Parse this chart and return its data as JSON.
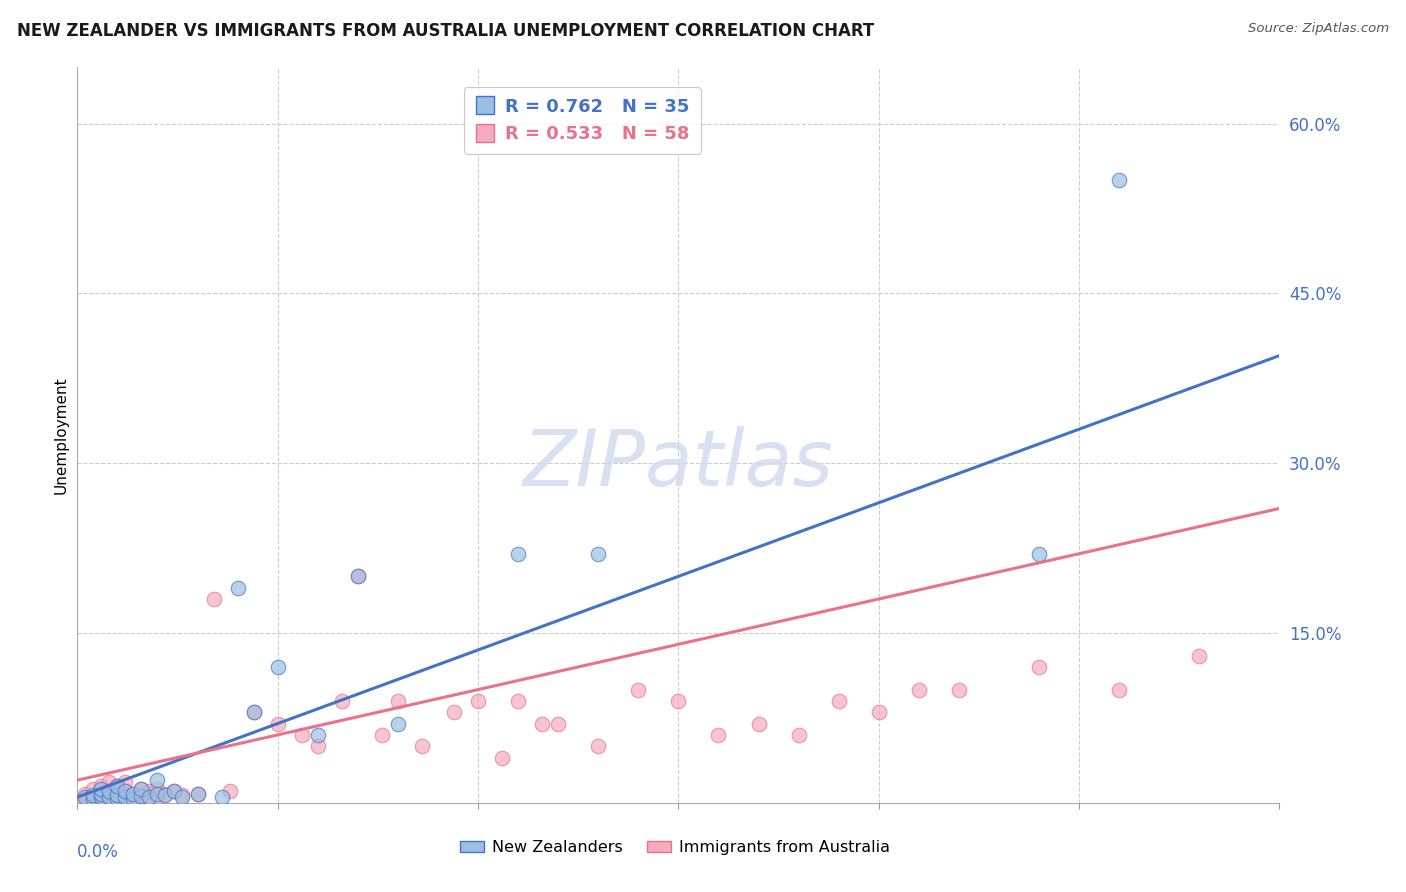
{
  "title": "NEW ZEALANDER VS IMMIGRANTS FROM AUSTRALIA UNEMPLOYMENT CORRELATION CHART",
  "source": "Source: ZipAtlas.com",
  "ylabel": "Unemployment",
  "xmin": 0.0,
  "xmax": 0.15,
  "ymin": 0.0,
  "ymax": 0.65,
  "yticks": [
    0.0,
    0.15,
    0.3,
    0.45,
    0.6
  ],
  "ytick_labels": [
    "",
    "15.0%",
    "30.0%",
    "45.0%",
    "60.0%"
  ],
  "xticks": [
    0.0,
    0.025,
    0.05,
    0.075,
    0.1,
    0.125,
    0.15
  ],
  "blue_R": 0.762,
  "blue_N": 35,
  "pink_R": 0.533,
  "pink_N": 58,
  "blue_color": "#9BBFE0",
  "pink_color": "#F4ABBE",
  "blue_line_color": "#4472C4",
  "pink_line_color": "#E8728A",
  "legend_label_blue": "New Zealanders",
  "legend_label_pink": "Immigrants from Australia",
  "blue_scatter_x": [
    0.001,
    0.002,
    0.002,
    0.003,
    0.003,
    0.003,
    0.004,
    0.004,
    0.005,
    0.005,
    0.005,
    0.006,
    0.006,
    0.007,
    0.007,
    0.008,
    0.008,
    0.009,
    0.01,
    0.01,
    0.011,
    0.012,
    0.013,
    0.015,
    0.018,
    0.02,
    0.022,
    0.025,
    0.03,
    0.035,
    0.04,
    0.055,
    0.065,
    0.12,
    0.13
  ],
  "blue_scatter_y": [
    0.005,
    0.003,
    0.007,
    0.005,
    0.008,
    0.012,
    0.005,
    0.01,
    0.003,
    0.007,
    0.015,
    0.005,
    0.01,
    0.003,
    0.008,
    0.006,
    0.012,
    0.005,
    0.008,
    0.02,
    0.007,
    0.01,
    0.005,
    0.008,
    0.005,
    0.19,
    0.08,
    0.12,
    0.06,
    0.2,
    0.07,
    0.22,
    0.22,
    0.22,
    0.55
  ],
  "pink_scatter_x": [
    0.001,
    0.001,
    0.002,
    0.002,
    0.003,
    0.003,
    0.003,
    0.004,
    0.004,
    0.004,
    0.005,
    0.005,
    0.005,
    0.006,
    0.006,
    0.006,
    0.007,
    0.007,
    0.008,
    0.008,
    0.009,
    0.009,
    0.01,
    0.01,
    0.011,
    0.012,
    0.013,
    0.015,
    0.017,
    0.019,
    0.022,
    0.025,
    0.028,
    0.03,
    0.033,
    0.035,
    0.038,
    0.04,
    0.043,
    0.047,
    0.05,
    0.053,
    0.055,
    0.058,
    0.06,
    0.065,
    0.07,
    0.075,
    0.08,
    0.085,
    0.09,
    0.095,
    0.1,
    0.105,
    0.11,
    0.12,
    0.13,
    0.14
  ],
  "pink_scatter_y": [
    0.003,
    0.008,
    0.005,
    0.012,
    0.003,
    0.008,
    0.015,
    0.005,
    0.01,
    0.018,
    0.003,
    0.008,
    0.015,
    0.005,
    0.01,
    0.018,
    0.003,
    0.008,
    0.006,
    0.012,
    0.005,
    0.01,
    0.005,
    0.012,
    0.008,
    0.01,
    0.007,
    0.008,
    0.18,
    0.01,
    0.08,
    0.07,
    0.06,
    0.05,
    0.09,
    0.2,
    0.06,
    0.09,
    0.05,
    0.08,
    0.09,
    0.04,
    0.09,
    0.07,
    0.07,
    0.05,
    0.1,
    0.09,
    0.06,
    0.07,
    0.06,
    0.09,
    0.08,
    0.1,
    0.1,
    0.12,
    0.1,
    0.13
  ],
  "blue_line_x0": 0.0,
  "blue_line_y0": 0.005,
  "blue_line_x1": 0.15,
  "blue_line_y1": 0.395,
  "pink_line_x0": 0.0,
  "pink_line_y0": 0.02,
  "pink_line_x1": 0.15,
  "pink_line_y1": 0.26,
  "watermark_text": "ZIPatlas",
  "background_color": "#FFFFFF",
  "grid_color": "#CCCCCC"
}
